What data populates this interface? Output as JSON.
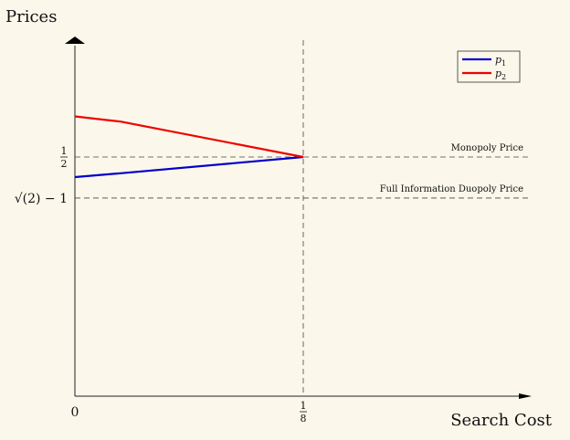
{
  "chart_data": {
    "type": "line",
    "title": "",
    "ylabel": "Prices",
    "xlabel": "Search Cost",
    "x_ticks": [
      {
        "value": 0,
        "label": "0"
      },
      {
        "value": 0.125,
        "num": "1",
        "den": "8"
      }
    ],
    "y_ticks": [
      {
        "value": 0.5,
        "num": "1",
        "den": "2"
      },
      {
        "value": 0.4142,
        "label": "√(2) − 1"
      }
    ],
    "xlim": [
      0,
      0.25
    ],
    "ylim": [
      0,
      0.72
    ],
    "series": [
      {
        "name": "p1",
        "name_base": "p",
        "name_sub": "1",
        "color": "#0000cc",
        "x": [
          0,
          0.025,
          0.125
        ],
        "y": [
          0.458,
          0.466,
          0.5
        ]
      },
      {
        "name": "p2",
        "name_base": "p",
        "name_sub": "2",
        "color": "#ee0000",
        "x": [
          0,
          0.025,
          0.125
        ],
        "y": [
          0.585,
          0.574,
          0.5
        ]
      }
    ],
    "reference_lines": [
      {
        "orientation": "horizontal",
        "value": 0.5,
        "label": "Monopoly Price"
      },
      {
        "orientation": "horizontal",
        "value": 0.4142,
        "label": "Full Information Duopoly Price"
      },
      {
        "orientation": "vertical",
        "value": 0.125
      }
    ],
    "legend_position": "top-right",
    "grid": false
  }
}
